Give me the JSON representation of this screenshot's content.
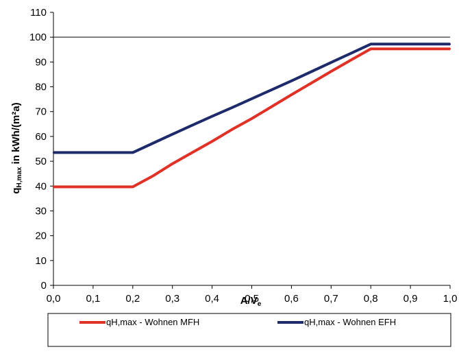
{
  "chart_data": {
    "type": "line",
    "title": "",
    "xlabel_main": "A/V",
    "xlabel_sub": "e",
    "ylabel_parts": {
      "q": "q",
      "sub": "H,max",
      "rest": " in kWh/(m²a)"
    },
    "xlim": [
      0,
      1
    ],
    "ylim": [
      0,
      110
    ],
    "x_ticks": [
      0,
      0.1,
      0.2,
      0.3,
      0.4,
      0.5,
      0.6,
      0.7,
      0.8,
      0.9,
      1.0
    ],
    "x_tick_labels": [
      "0,0",
      "0,1",
      "0,2",
      "0,3",
      "0,4",
      "0,5",
      "0,6",
      "0,7",
      "0,8",
      "0,9",
      "1,0"
    ],
    "y_ticks": [
      0,
      10,
      20,
      30,
      40,
      50,
      60,
      70,
      80,
      90,
      100,
      110
    ],
    "y_tick_labels": [
      "0",
      "10",
      "20",
      "30",
      "40",
      "50",
      "60",
      "70",
      "80",
      "90",
      "100",
      "110"
    ],
    "gridlines": {
      "horizontal": [
        100
      ],
      "vertical": false
    },
    "legend_position": "bottom",
    "series": [
      {
        "name": "qH,max - Wohnen MFH",
        "color": "#e03127",
        "x": [
          0.0,
          0.05,
          0.2,
          0.25,
          0.3,
          0.35,
          0.4,
          0.45,
          0.5,
          0.55,
          0.6,
          0.65,
          0.7,
          0.75,
          0.8,
          0.9,
          1.0
        ],
        "y": [
          39.7,
          39.7,
          39.7,
          44.0,
          49.0,
          53.5,
          58.0,
          62.8,
          67.2,
          72.0,
          76.8,
          81.5,
          86.2,
          90.8,
          95.3,
          95.3,
          95.3
        ]
      },
      {
        "name": "qH,max - Wohnen EFH",
        "color": "#1f2a6b",
        "x": [
          0.0,
          0.05,
          0.2,
          0.25,
          0.3,
          0.35,
          0.4,
          0.45,
          0.5,
          0.55,
          0.6,
          0.65,
          0.7,
          0.75,
          0.8,
          0.9,
          1.0
        ],
        "y": [
          53.5,
          53.5,
          53.5,
          57.2,
          60.9,
          64.5,
          68.1,
          71.6,
          75.2,
          78.8,
          82.4,
          86.1,
          89.8,
          93.5,
          97.2,
          97.2,
          97.2
        ]
      }
    ]
  }
}
